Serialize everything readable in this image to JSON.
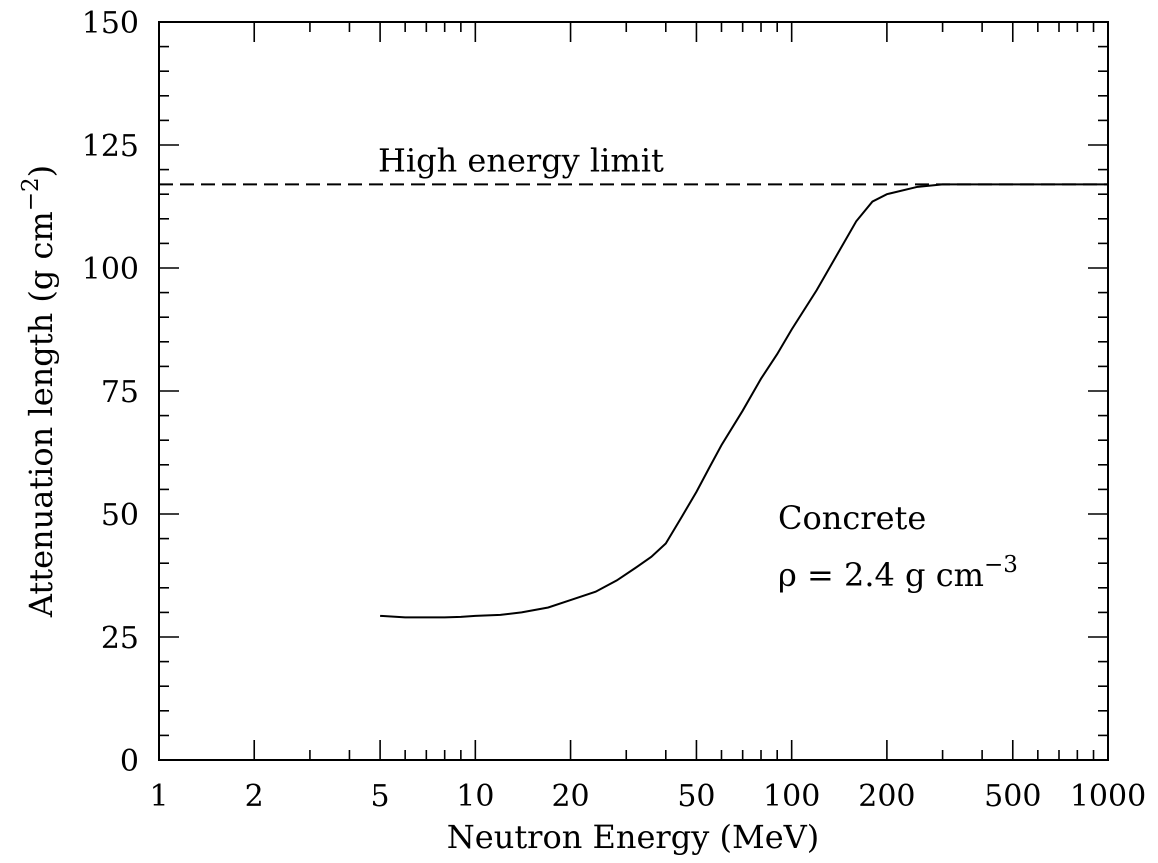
{
  "chart_data": {
    "type": "line",
    "title": "",
    "xlabel": "Neutron Energy (MeV)",
    "ylabel": {
      "main": "Attenuation length (g cm",
      "sup": "−2",
      "close": ")"
    },
    "xscale": "log",
    "xlim": [
      1,
      1000
    ],
    "ylim": [
      0,
      150
    ],
    "xticks": [
      1,
      2,
      5,
      10,
      20,
      50,
      100,
      200,
      500,
      1000
    ],
    "xtick_labels": [
      "1",
      "2",
      "5",
      "10",
      "20",
      "50",
      "100",
      "200",
      "500",
      "1000"
    ],
    "yticks": [
      0,
      25,
      50,
      75,
      100,
      125,
      150
    ],
    "ytick_labels": [
      "0",
      "25",
      "50",
      "75",
      "100",
      "125",
      "150"
    ],
    "grid": false,
    "series": [
      {
        "name": "",
        "style": "solid",
        "x": [
          5,
          6,
          7,
          8,
          9,
          10,
          12,
          14,
          17,
          20,
          24,
          28,
          32,
          36,
          40,
          45,
          50,
          55,
          60,
          70,
          80,
          90,
          100,
          120,
          140,
          160,
          180,
          200,
          250,
          300,
          400,
          500,
          700,
          1000
        ],
        "y": [
          29.3,
          29.0,
          29.0,
          29.0,
          29.1,
          29.3,
          29.5,
          30.0,
          31.0,
          32.5,
          34.2,
          36.5,
          39.0,
          41.3,
          44.0,
          49.5,
          54.5,
          59.5,
          64.0,
          71.0,
          77.5,
          82.5,
          87.5,
          95.5,
          103.0,
          109.5,
          113.5,
          115.0,
          116.5,
          117.0,
          117.0,
          117.0,
          117.0,
          117.0
        ]
      }
    ],
    "reference_line": {
      "y": 117,
      "style": "dashed",
      "label": "High energy limit"
    },
    "annotation": {
      "line1": "Concrete",
      "line2_main": "ρ = 2.4 g cm",
      "line2_sup": "−3"
    }
  }
}
